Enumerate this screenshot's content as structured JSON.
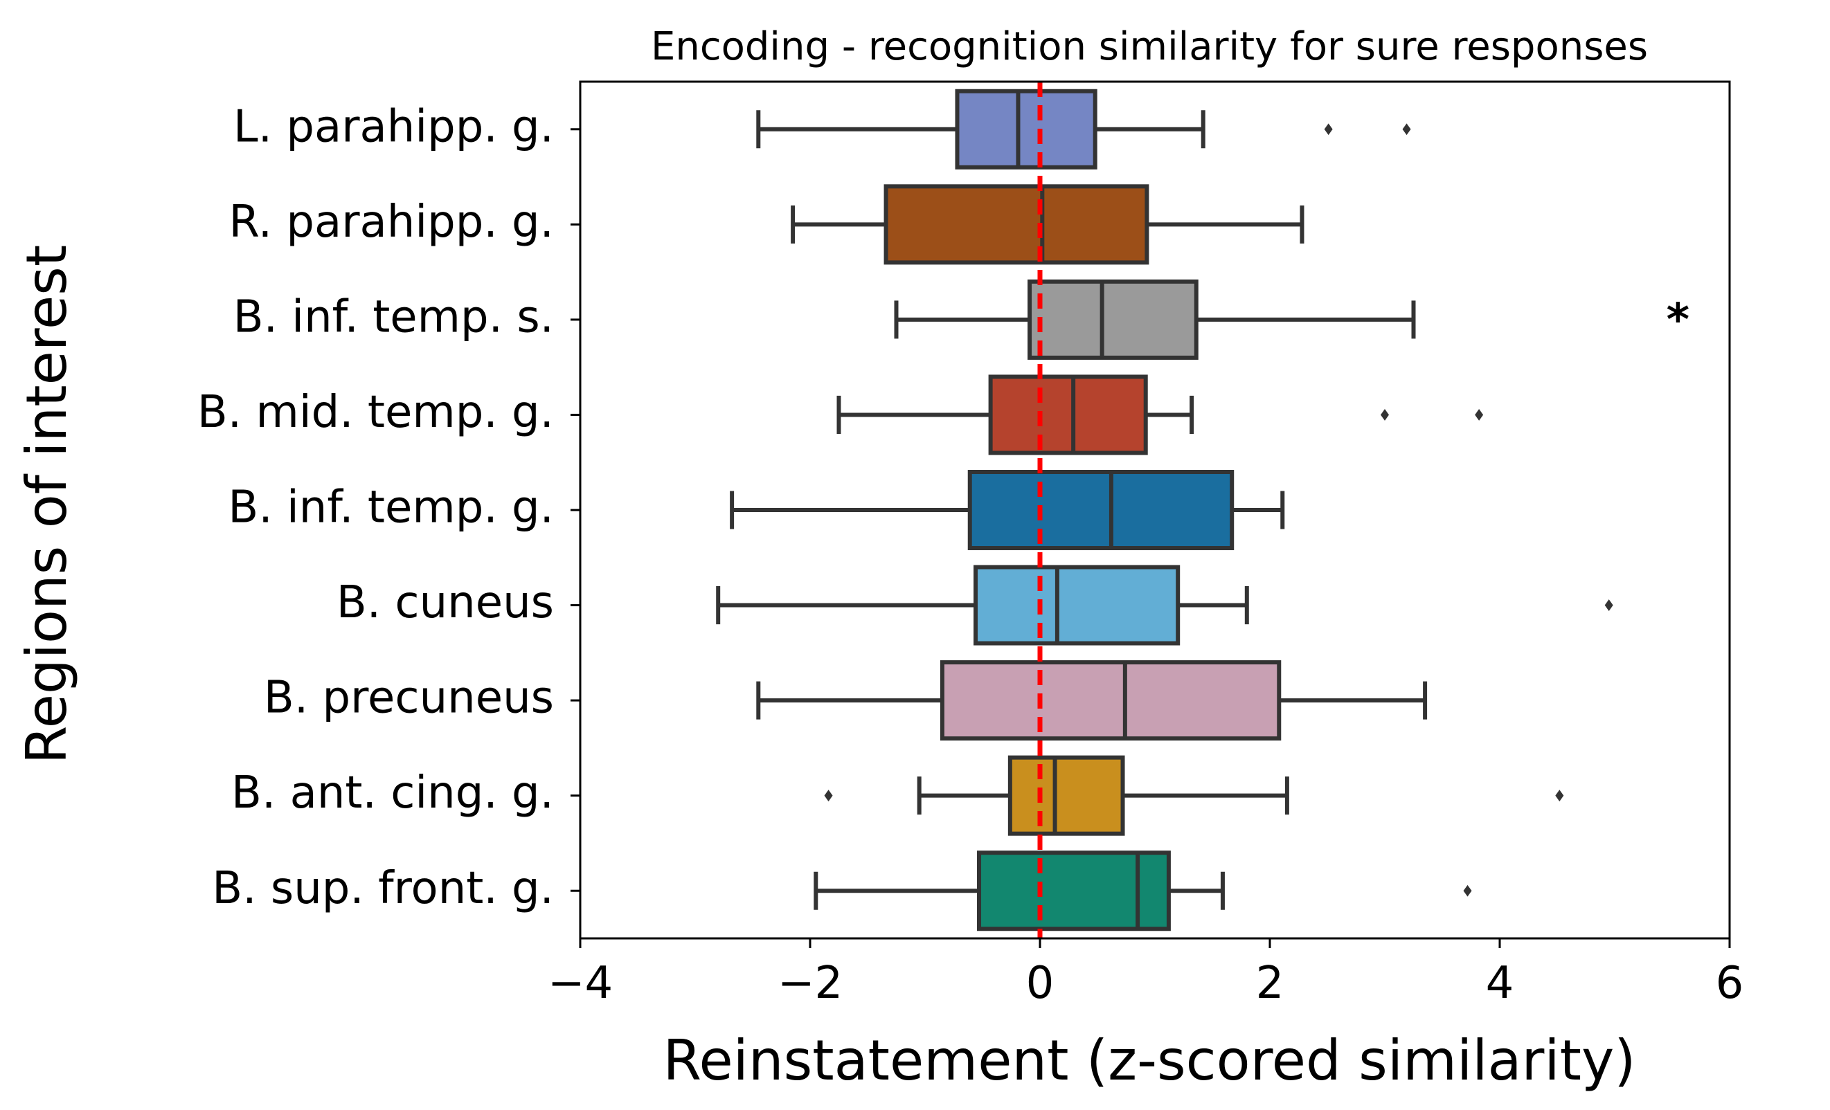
{
  "chart_data": {
    "type": "boxplot",
    "orientation": "horizontal",
    "title": "Encoding - recognition similarity for sure responses",
    "xlabel": "Reinstatement (z-scored similarity)",
    "ylabel": "Regions of interest",
    "xlim": [
      -4,
      6
    ],
    "xticks": [
      -4,
      -2,
      0,
      2,
      4,
      6
    ],
    "xtick_labels": [
      "−4",
      "−2",
      "0",
      "2",
      "4",
      "6"
    ],
    "grid": false,
    "reference_line": {
      "x": 0,
      "color": "#ff0000",
      "style": "dashed"
    },
    "categories": [
      "L. parahipp. g.",
      "R. parahipp. g.",
      "B. inf. temp. s.",
      "B. mid. temp. g.",
      "B. inf. temp. g.",
      "B. cuneus",
      "B. precuneus",
      "B. ant. cing. g.",
      "B. sup. front. g."
    ],
    "series": [
      {
        "category": "L. parahipp. g.",
        "color": "#7586c4",
        "whisker_low": -2.45,
        "q1": -0.72,
        "median": -0.19,
        "q3": 0.48,
        "whisker_high": 1.42,
        "outliers": [
          2.51,
          3.19
        ]
      },
      {
        "category": "R. parahipp. g.",
        "color": "#9c4f18",
        "whisker_low": -2.15,
        "q1": -1.34,
        "median": 0.02,
        "q3": 0.93,
        "whisker_high": 2.28,
        "outliers": []
      },
      {
        "category": "B. inf. temp. s.",
        "color": "#9a9a9a",
        "whisker_low": -1.25,
        "q1": -0.09,
        "median": 0.54,
        "q3": 1.36,
        "whisker_high": 3.25,
        "outliers": []
      },
      {
        "category": "B. mid. temp. g.",
        "color": "#b5432d",
        "whisker_low": -1.75,
        "q1": -0.43,
        "median": 0.29,
        "q3": 0.92,
        "whisker_high": 1.32,
        "outliers": [
          3.0,
          3.82
        ]
      },
      {
        "category": "B. inf. temp. g.",
        "color": "#1a6e9f",
        "whisker_low": -2.68,
        "q1": -0.61,
        "median": 0.62,
        "q3": 1.67,
        "whisker_high": 2.11,
        "outliers": []
      },
      {
        "category": "B. cuneus",
        "color": "#62aed5",
        "whisker_low": -2.8,
        "q1": -0.56,
        "median": 0.15,
        "q3": 1.2,
        "whisker_high": 1.8,
        "outliers": [
          4.95
        ]
      },
      {
        "category": "B. precuneus",
        "color": "#c8a0b3",
        "whisker_low": -2.45,
        "q1": -0.85,
        "median": 0.74,
        "q3": 2.08,
        "whisker_high": 3.35,
        "outliers": []
      },
      {
        "category": "B. ant. cing. g.",
        "color": "#c98f1e",
        "whisker_low": -1.05,
        "q1": -0.26,
        "median": 0.13,
        "q3": 0.72,
        "whisker_high": 2.15,
        "outliers": [
          -1.84,
          4.52
        ]
      },
      {
        "category": "B. sup. front. g.",
        "color": "#12876f",
        "whisker_low": -1.95,
        "q1": -0.53,
        "median": 0.85,
        "q3": 1.12,
        "whisker_high": 1.59,
        "outliers": [
          3.72
        ]
      }
    ],
    "annotations": [
      {
        "text": "*",
        "category": "B. inf. temp. s.",
        "x": 5.55
      }
    ]
  }
}
